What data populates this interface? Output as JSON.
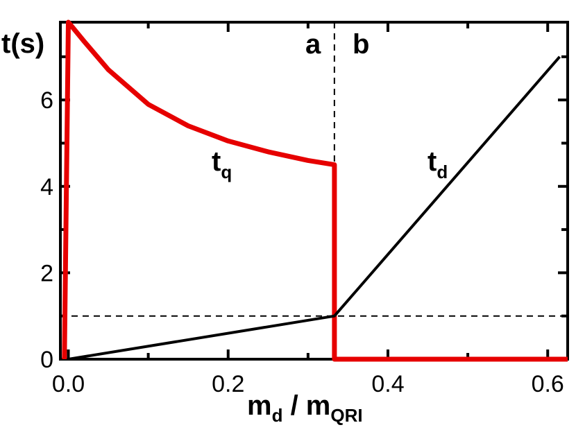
{
  "chart_data": {
    "type": "line",
    "title": "",
    "xlabel": {
      "main": "m",
      "main_sub": "d",
      "sep": " / m",
      "denom_sub": "QRI"
    },
    "ylabel": "t(s)",
    "xlim": [
      -0.01,
      0.625
    ],
    "ylim": [
      0,
      7.8
    ],
    "xticks": [
      0.0,
      0.2,
      0.4,
      0.6
    ],
    "xtick_labels": [
      "0.0",
      "0.2",
      "0.4",
      "0.6"
    ],
    "yticks": [
      0,
      2,
      4,
      6
    ],
    "ytick_labels": [
      "0",
      "2",
      "4",
      "6"
    ],
    "grid": false,
    "region_labels": [
      "a",
      "b"
    ],
    "reference_lines": {
      "vertical_x": 0.333,
      "horizontal_y": 1.0
    },
    "series": [
      {
        "name": "t",
        "name_sub": "q",
        "color": "#e60000",
        "x": [
          -0.005,
          0.0,
          0.02,
          0.05,
          0.1,
          0.15,
          0.2,
          0.25,
          0.3,
          0.333,
          0.333,
          0.333,
          0.625
        ],
        "y": [
          0.0,
          7.8,
          7.35,
          6.7,
          5.9,
          5.4,
          5.05,
          4.8,
          4.6,
          4.5,
          4.5,
          0.0,
          0.0
        ]
      },
      {
        "name": "t",
        "name_sub": "d",
        "color": "#000000",
        "x": [
          0.0,
          0.333,
          0.615
        ],
        "y": [
          0.0,
          1.0,
          7.0
        ]
      }
    ]
  }
}
